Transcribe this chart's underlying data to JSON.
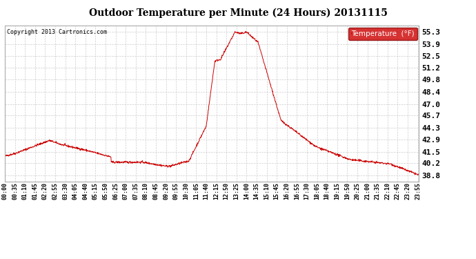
{
  "title": "Outdoor Temperature per Minute (24 Hours) 20131115",
  "copyright_text": "Copyright 2013 Cartronics.com",
  "legend_label": "Temperature  (°F)",
  "legend_bg": "#cc0000",
  "legend_text_color": "#ffffff",
  "line_color": "#cc0000",
  "bg_color": "#ffffff",
  "grid_color": "#cccccc",
  "yticks": [
    38.8,
    40.2,
    41.5,
    42.9,
    44.3,
    45.7,
    47.0,
    48.4,
    49.8,
    51.2,
    52.5,
    53.9,
    55.3
  ],
  "ymin": 38.1,
  "ymax": 56.0,
  "total_minutes": 1440,
  "x_tick_interval": 35,
  "x_tick_labels": [
    "00:00",
    "00:35",
    "01:10",
    "01:45",
    "02:20",
    "02:55",
    "03:30",
    "04:05",
    "04:40",
    "05:15",
    "05:50",
    "06:25",
    "07:00",
    "07:35",
    "08:10",
    "08:45",
    "09:20",
    "09:55",
    "10:30",
    "11:05",
    "11:40",
    "12:15",
    "12:50",
    "13:25",
    "14:00",
    "14:35",
    "15:10",
    "15:45",
    "16:20",
    "16:55",
    "17:30",
    "18:05",
    "18:40",
    "19:15",
    "19:50",
    "20:25",
    "21:00",
    "21:35",
    "22:10",
    "22:45",
    "23:20",
    "23:55"
  ]
}
